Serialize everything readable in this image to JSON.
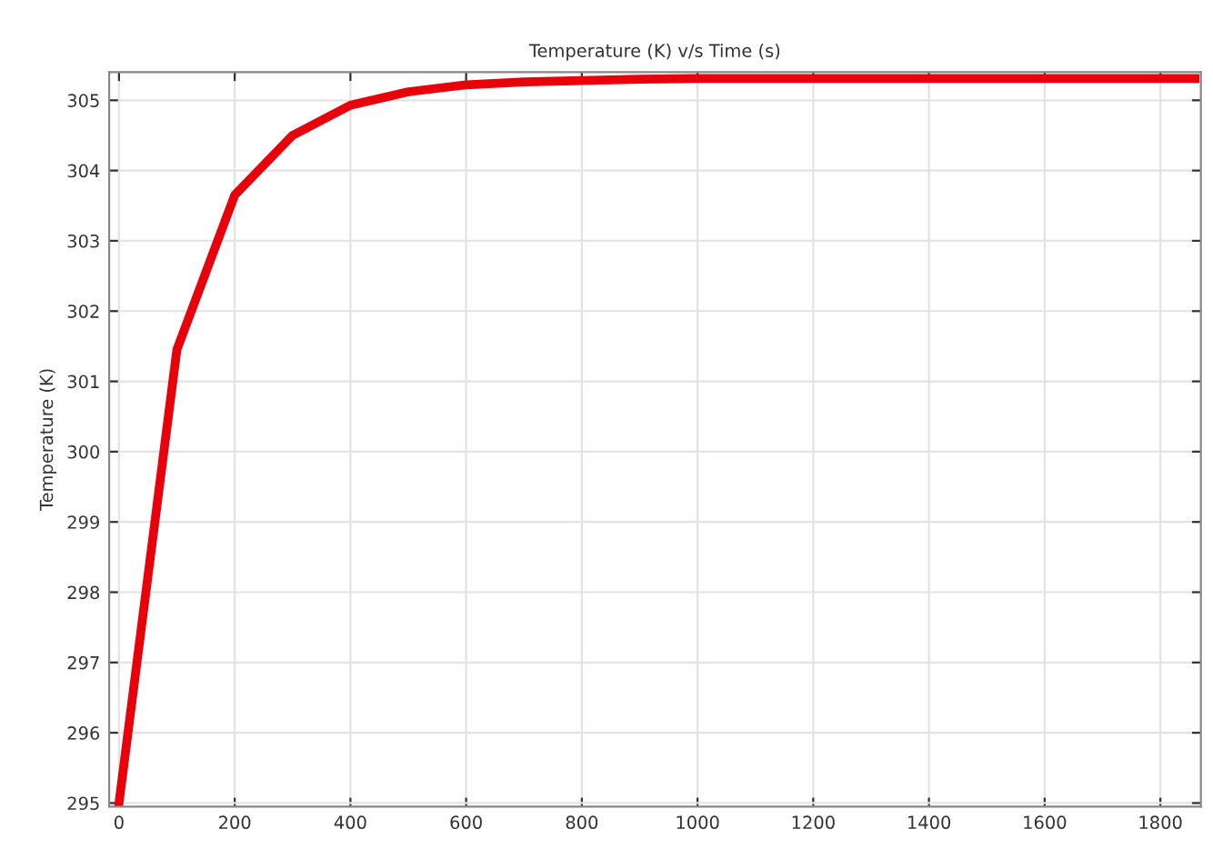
{
  "chart_data": {
    "type": "line",
    "title": "Temperature (K) v/s Time (s)",
    "ylabel": "Temperature (K)",
    "x": [
      0,
      100,
      200,
      300,
      400,
      500,
      600,
      700,
      800,
      900,
      1000,
      1200,
      1400,
      1600,
      1800,
      1860
    ],
    "series": [
      {
        "color": "#e8000b",
        "values": [
          295.0,
          301.45,
          303.65,
          304.5,
          304.93,
          305.12,
          305.22,
          305.26,
          305.28,
          305.3,
          305.31,
          305.31,
          305.31,
          305.31,
          305.31,
          305.31
        ]
      }
    ],
    "xlim": [
      -17,
      1870
    ],
    "ylim": [
      294.95,
      305.4
    ],
    "xticks": [
      0,
      200,
      400,
      600,
      800,
      1000,
      1200,
      1400,
      1600,
      1800
    ],
    "yticks": [
      295,
      296,
      297,
      298,
      299,
      300,
      301,
      302,
      303,
      304,
      305
    ],
    "grid": true,
    "line_style": "solid",
    "marker": "none"
  }
}
